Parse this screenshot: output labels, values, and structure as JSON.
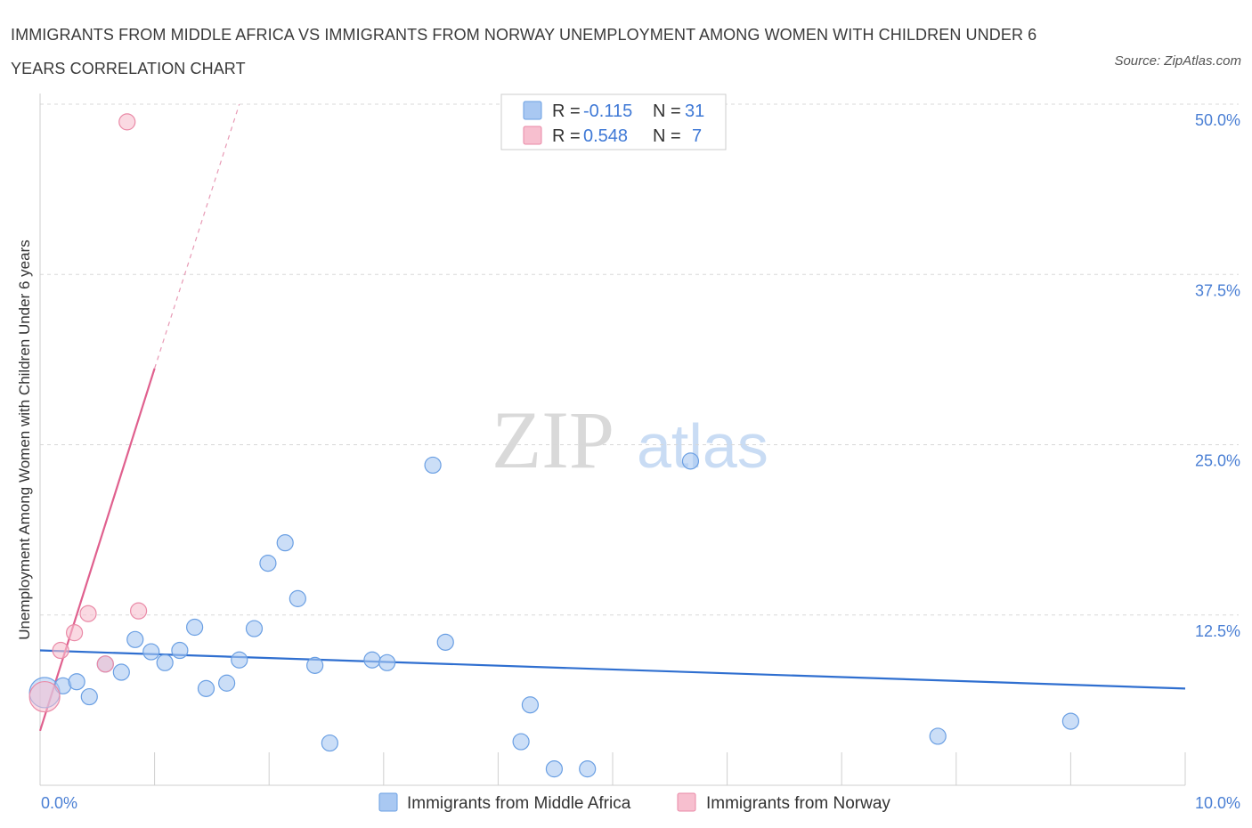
{
  "title": "IMMIGRANTS FROM MIDDLE AFRICA VS IMMIGRANTS FROM NORWAY UNEMPLOYMENT AMONG WOMEN WITH CHILDREN UNDER 6 YEARS CORRELATION CHART",
  "source": "Source: ZipAtlas.com",
  "watermark": {
    "zip": "ZIP",
    "atlas": "atlas"
  },
  "legend": {
    "r_label": "R =",
    "n_label": "N =",
    "series": [
      {
        "r": "-0.115",
        "n": "31"
      },
      {
        "r": "0.548",
        "n": "7"
      }
    ]
  },
  "colors": {
    "blue_fill": "#a9c8f2",
    "blue_stroke": "#6a9fe3",
    "blue_line": "#2f6fd0",
    "pink_fill": "#f7bfcf",
    "pink_stroke": "#ea8aa7",
    "pink_line": "#e0608e",
    "axis_text": "#4a7fd4",
    "grid": "#d8d8d8"
  },
  "chart_data": {
    "type": "scatter",
    "title": "IMMIGRANTS FROM MIDDLE AFRICA VS IMMIGRANTS FROM NORWAY UNEMPLOYMENT AMONG WOMEN WITH CHILDREN UNDER 6 YEARS CORRELATION CHART",
    "xlabel": "",
    "ylabel": "Unemployment Among Women with Children Under 6 years",
    "xlim": [
      0,
      10
    ],
    "ylim": [
      0,
      50
    ],
    "x_tick_labels": [
      "0.0%",
      "10.0%"
    ],
    "y_ticks": [
      12.5,
      25.0,
      37.5,
      50.0
    ],
    "y_tick_labels": [
      "12.5%",
      "25.0%",
      "37.5%",
      "50.0%"
    ],
    "grid": true,
    "legend_position": "top-center",
    "series": [
      {
        "name": "Immigrants from Middle Africa",
        "color": "blue",
        "points": [
          {
            "x": 0.04,
            "y": 6.8,
            "big": true
          },
          {
            "x": 0.2,
            "y": 7.3
          },
          {
            "x": 0.32,
            "y": 7.6
          },
          {
            "x": 0.43,
            "y": 6.5
          },
          {
            "x": 0.57,
            "y": 8.9
          },
          {
            "x": 0.71,
            "y": 8.3
          },
          {
            "x": 0.83,
            "y": 10.7
          },
          {
            "x": 0.97,
            "y": 9.8
          },
          {
            "x": 1.09,
            "y": 9.0
          },
          {
            "x": 1.22,
            "y": 9.9
          },
          {
            "x": 1.35,
            "y": 11.6
          },
          {
            "x": 1.45,
            "y": 7.1
          },
          {
            "x": 1.63,
            "y": 7.5
          },
          {
            "x": 1.74,
            "y": 9.2
          },
          {
            "x": 1.87,
            "y": 11.5
          },
          {
            "x": 1.99,
            "y": 16.3
          },
          {
            "x": 2.14,
            "y": 17.8
          },
          {
            "x": 2.25,
            "y": 13.7
          },
          {
            "x": 2.4,
            "y": 8.8
          },
          {
            "x": 2.53,
            "y": 3.1
          },
          {
            "x": 2.9,
            "y": 9.2
          },
          {
            "x": 3.03,
            "y": 9.0
          },
          {
            "x": 3.43,
            "y": 23.5
          },
          {
            "x": 3.54,
            "y": 10.5
          },
          {
            "x": 4.2,
            "y": 3.2
          },
          {
            "x": 4.28,
            "y": 5.9
          },
          {
            "x": 4.49,
            "y": 1.2
          },
          {
            "x": 4.78,
            "y": 1.2
          },
          {
            "x": 5.68,
            "y": 23.8
          },
          {
            "x": 7.84,
            "y": 3.6
          },
          {
            "x": 9.0,
            "y": 4.7
          }
        ],
        "trend": {
          "x1": 0.0,
          "y1": 9.9,
          "x2": 10.0,
          "y2": 7.1
        }
      },
      {
        "name": "Immigrants from Norway",
        "color": "pink",
        "points": [
          {
            "x": 0.04,
            "y": 6.5,
            "big": true
          },
          {
            "x": 0.18,
            "y": 9.9
          },
          {
            "x": 0.3,
            "y": 11.2
          },
          {
            "x": 0.42,
            "y": 12.6
          },
          {
            "x": 0.57,
            "y": 8.9
          },
          {
            "x": 0.76,
            "y": 48.7
          },
          {
            "x": 0.86,
            "y": 12.8
          }
        ],
        "trend": {
          "x1": 0.0,
          "y1": 4.0,
          "x2": 1.0,
          "y2": 30.6
        },
        "trend_dashed": {
          "x1": 1.0,
          "y1": 30.6,
          "x2": 1.74,
          "y2": 50.0
        }
      }
    ]
  },
  "bottom_legend": [
    {
      "label": "Immigrants from Middle Africa"
    },
    {
      "label": "Immigrants from Norway"
    }
  ]
}
